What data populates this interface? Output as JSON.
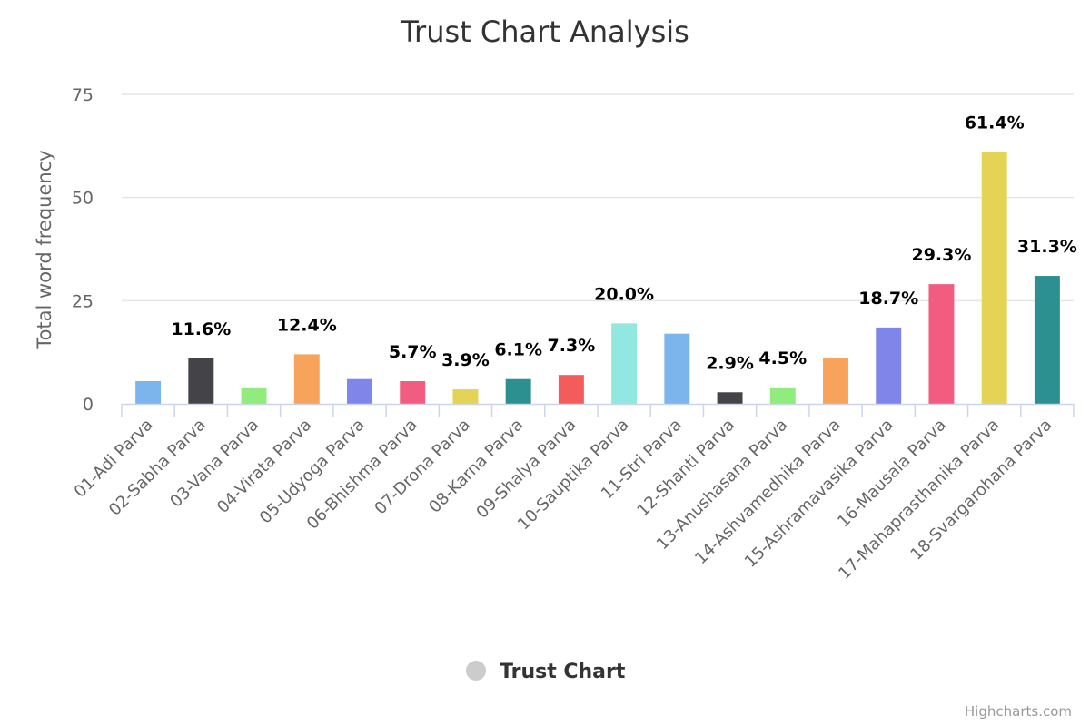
{
  "chart_data": {
    "type": "bar",
    "title": "Trust Chart Analysis",
    "ylabel": "Total word frequency",
    "xlabel": "",
    "ylim": [
      0,
      75
    ],
    "yticks": [
      0,
      25,
      50,
      75
    ],
    "grid": true,
    "legend_position": "bottom-center",
    "series": [
      {
        "name": "Trust Chart",
        "values": [
          5.5,
          11,
          4,
          12,
          6,
          5.5,
          3.5,
          6,
          7,
          19.5,
          17,
          2.8,
          4,
          11,
          18.5,
          29,
          61,
          31
        ]
      }
    ],
    "categories": [
      "01-Adi Parva",
      "02-Sabha Parva",
      "03-Vana Parva",
      "04-Virata Parva",
      "05-Udyoga Parva",
      "06-Bhishma Parva",
      "07-Drona Parva",
      "08-Karna Parva",
      "09-Shalya Parva",
      "10-Sauptika Parva",
      "11-Stri Parva",
      "12-Shanti Parva",
      "13-Anushasana Parva",
      "14-Ashvamedhika Parva",
      "15-Ashramavasika Parva",
      "16-Mausala Parva",
      "17-Mahaprasthanika Parva",
      "18-Svargarohana Parva"
    ],
    "data_labels": [
      "",
      "11.6%",
      "",
      "12.4%",
      "",
      "5.7%",
      "3.9%",
      "6.1%",
      "7.3%",
      "20.0%",
      "",
      "2.9%",
      "4.5%",
      "",
      "18.7%",
      "29.3%",
      "61.4%",
      "31.3%"
    ],
    "colors": [
      "#7cb5ec",
      "#434348",
      "#90ed7d",
      "#f7a35c",
      "#8085e9",
      "#f15c80",
      "#e4d354",
      "#2b908f",
      "#f45b5b",
      "#91e8e1",
      "#7cb5ec",
      "#434348",
      "#90ed7d",
      "#f7a35c",
      "#8085e9",
      "#f15c80",
      "#e4d354",
      "#2b908f"
    ],
    "legend_marker_color": "#cccccc",
    "credits": "Highcharts.com"
  }
}
